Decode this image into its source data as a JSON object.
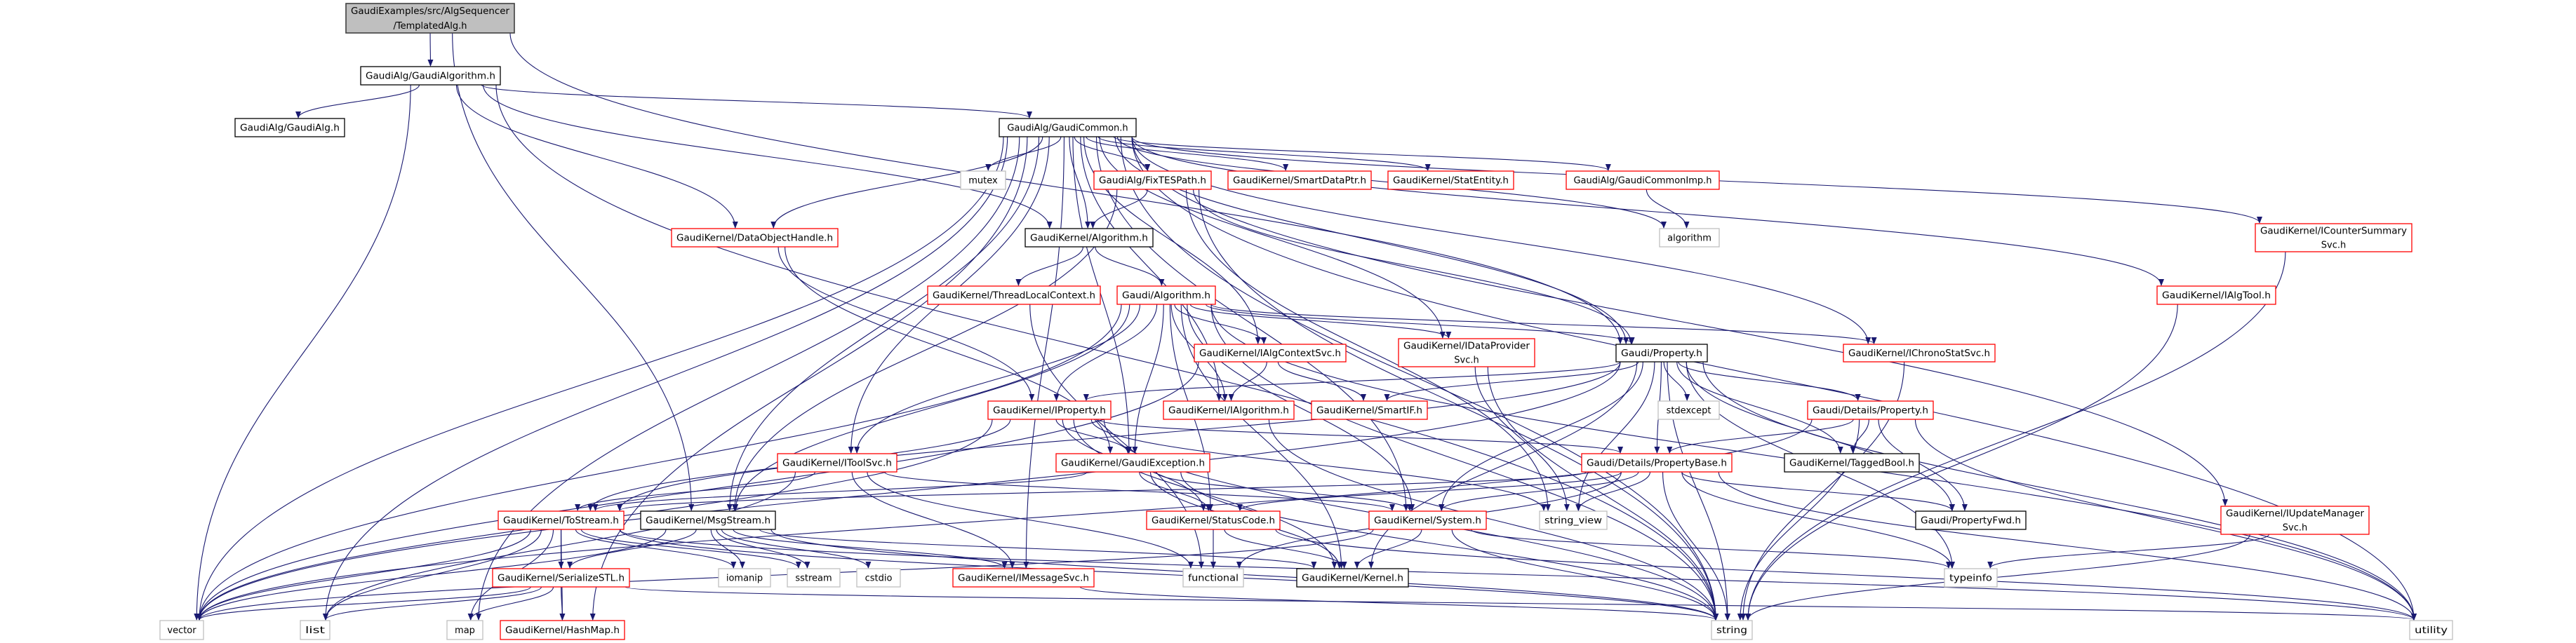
{
  "colors": {
    "edge": "#191970",
    "root_fill": "#bfbfbf",
    "root_border": "#404040",
    "incomplete_border": "#ff0000",
    "documented_border": "#000000",
    "system_border": "#bfbfbf"
  },
  "nodes": [
    {
      "id": "templated",
      "kind": "root",
      "lines": [
        "GaudiExamples/src/AlgSequencer",
        "/TemplatedAlg.h"
      ]
    },
    {
      "id": "gaudialgorithm",
      "kind": "documented",
      "lines": [
        "GaudiAlg/GaudiAlgorithm.h"
      ]
    },
    {
      "id": "gaudialg",
      "kind": "documented",
      "lines": [
        "GaudiAlg/GaudiAlg.h"
      ]
    },
    {
      "id": "gaudicommon",
      "kind": "documented",
      "lines": [
        "GaudiAlg/GaudiCommon.h"
      ]
    },
    {
      "id": "mutex",
      "kind": "system",
      "lines": [
        "mutex"
      ]
    },
    {
      "id": "fixtespath",
      "kind": "incomplete",
      "lines": [
        "GaudiAlg/FixTESPath.h"
      ]
    },
    {
      "id": "smartdataptr",
      "kind": "incomplete",
      "lines": [
        "GaudiKernel/SmartDataPtr.h"
      ]
    },
    {
      "id": "statentity",
      "kind": "incomplete",
      "lines": [
        "GaudiKernel/StatEntity.h"
      ]
    },
    {
      "id": "gaudicommonimp",
      "kind": "incomplete",
      "lines": [
        "GaudiAlg/GaudiCommonImp.h"
      ]
    },
    {
      "id": "algorithm_std",
      "kind": "system",
      "lines": [
        "algorithm"
      ]
    },
    {
      "id": "icountersummarysvc",
      "kind": "incomplete",
      "lines": [
        "GaudiKernel/ICounterSummary",
        "Svc.h"
      ]
    },
    {
      "id": "dataobjecthandle",
      "kind": "incomplete",
      "lines": [
        "GaudiKernel/DataObjectHandle.h"
      ]
    },
    {
      "id": "gk_algorithm",
      "kind": "documented",
      "lines": [
        "GaudiKernel/Algorithm.h"
      ]
    },
    {
      "id": "threadlocalcontext",
      "kind": "incomplete",
      "lines": [
        "GaudiKernel/ThreadLocalContext.h"
      ]
    },
    {
      "id": "gaudi_algorithm",
      "kind": "incomplete",
      "lines": [
        "Gaudi/Algorithm.h"
      ]
    },
    {
      "id": "ialgtool",
      "kind": "incomplete",
      "lines": [
        "GaudiKernel/IAlgTool.h"
      ]
    },
    {
      "id": "ialgcontextsvc",
      "kind": "incomplete",
      "lines": [
        "GaudiKernel/IAlgContextSvc.h"
      ]
    },
    {
      "id": "idataprovidersvc",
      "kind": "incomplete",
      "lines": [
        "GaudiKernel/IDataProvider",
        "Svc.h"
      ]
    },
    {
      "id": "property",
      "kind": "documented",
      "lines": [
        "Gaudi/Property.h"
      ]
    },
    {
      "id": "ichronostatsvc",
      "kind": "incomplete",
      "lines": [
        "GaudiKernel/IChronoStatSvc.h"
      ]
    },
    {
      "id": "iproperty",
      "kind": "incomplete",
      "lines": [
        "GaudiKernel/IProperty.h"
      ]
    },
    {
      "id": "ialgorithm",
      "kind": "incomplete",
      "lines": [
        "GaudiKernel/IAlgorithm.h"
      ]
    },
    {
      "id": "smartif",
      "kind": "incomplete",
      "lines": [
        "GaudiKernel/SmartIF.h"
      ]
    },
    {
      "id": "stdexcept",
      "kind": "system",
      "lines": [
        "stdexcept"
      ]
    },
    {
      "id": "details_property",
      "kind": "incomplete",
      "lines": [
        "Gaudi/Details/Property.h"
      ]
    },
    {
      "id": "itoolsvc",
      "kind": "incomplete",
      "lines": [
        "GaudiKernel/IToolSvc.h"
      ]
    },
    {
      "id": "gaudiexception",
      "kind": "incomplete",
      "lines": [
        "GaudiKernel/GaudiException.h"
      ]
    },
    {
      "id": "propertybase",
      "kind": "incomplete",
      "lines": [
        "Gaudi/Details/PropertyBase.h"
      ]
    },
    {
      "id": "taggedbool",
      "kind": "documented",
      "lines": [
        "GaudiKernel/TaggedBool.h"
      ]
    },
    {
      "id": "tostream",
      "kind": "incomplete",
      "lines": [
        "GaudiKernel/ToStream.h"
      ]
    },
    {
      "id": "msgstream",
      "kind": "documented",
      "lines": [
        "GaudiKernel/MsgStream.h"
      ]
    },
    {
      "id": "statuscode",
      "kind": "incomplete",
      "lines": [
        "GaudiKernel/StatusCode.h"
      ]
    },
    {
      "id": "system",
      "kind": "incomplete",
      "lines": [
        "GaudiKernel/System.h"
      ]
    },
    {
      "id": "string_view",
      "kind": "system",
      "lines": [
        "string_view"
      ]
    },
    {
      "id": "propertyfwd",
      "kind": "documented",
      "lines": [
        "Gaudi/PropertyFwd.h"
      ]
    },
    {
      "id": "iupdatemanagersvc",
      "kind": "incomplete",
      "lines": [
        "GaudiKernel/IUpdateManager",
        "Svc.h"
      ]
    },
    {
      "id": "serializestl",
      "kind": "incomplete",
      "lines": [
        "GaudiKernel/SerializeSTL.h"
      ]
    },
    {
      "id": "iomanip",
      "kind": "system",
      "lines": [
        "iomanip"
      ]
    },
    {
      "id": "sstream",
      "kind": "system",
      "lines": [
        "sstream"
      ]
    },
    {
      "id": "cstdio",
      "kind": "system",
      "lines": [
        "cstdio"
      ]
    },
    {
      "id": "imessagesvc",
      "kind": "incomplete",
      "lines": [
        "GaudiKernel/IMessageSvc.h"
      ]
    },
    {
      "id": "functional",
      "kind": "system",
      "lines": [
        "functional"
      ]
    },
    {
      "id": "kernel",
      "kind": "documented",
      "lines": [
        "GaudiKernel/Kernel.h"
      ]
    },
    {
      "id": "typeinfo",
      "kind": "system",
      "lines": [
        "typeinfo"
      ]
    },
    {
      "id": "vector",
      "kind": "system",
      "lines": [
        "vector"
      ]
    },
    {
      "id": "list",
      "kind": "system",
      "lines": [
        "list"
      ]
    },
    {
      "id": "map",
      "kind": "system",
      "lines": [
        "map"
      ]
    },
    {
      "id": "hashmap",
      "kind": "incomplete",
      "lines": [
        "GaudiKernel/HashMap.h"
      ]
    },
    {
      "id": "string",
      "kind": "system",
      "lines": [
        "string"
      ]
    },
    {
      "id": "utility",
      "kind": "system",
      "lines": [
        "utility"
      ]
    }
  ],
  "edges": [
    [
      "templated",
      "gaudialgorithm"
    ],
    [
      "templated",
      "property"
    ],
    [
      "templated",
      "msgstream"
    ],
    [
      "gaudialgorithm",
      "gaudialg"
    ],
    [
      "gaudialgorithm",
      "gaudicommon"
    ],
    [
      "gaudialgorithm",
      "dataobjecthandle"
    ],
    [
      "gaudialgorithm",
      "gk_algorithm"
    ],
    [
      "gaudialgorithm",
      "vector"
    ],
    [
      "gaudialgorithm",
      "string"
    ],
    [
      "gaudicommon",
      "mutex"
    ],
    [
      "gaudicommon",
      "fixtespath"
    ],
    [
      "gaudicommon",
      "smartdataptr"
    ],
    [
      "gaudicommon",
      "statentity"
    ],
    [
      "gaudicommon",
      "gaudicommonimp"
    ],
    [
      "gaudicommon",
      "algorithm_std"
    ],
    [
      "gaudicommon",
      "icountersummarysvc"
    ],
    [
      "gaudicommon",
      "dataobjecthandle"
    ],
    [
      "gaudicommon",
      "gk_algorithm"
    ],
    [
      "gaudicommon",
      "ialgtool"
    ],
    [
      "gaudicommon",
      "ialgcontextsvc"
    ],
    [
      "gaudicommon",
      "idataprovidersvc"
    ],
    [
      "gaudicommon",
      "ichronostatsvc"
    ],
    [
      "gaudicommon",
      "ialgorithm"
    ],
    [
      "gaudicommon",
      "itoolsvc"
    ],
    [
      "gaudicommon",
      "gaudiexception"
    ],
    [
      "gaudicommon",
      "msgstream"
    ],
    [
      "gaudicommon",
      "system"
    ],
    [
      "gaudicommon",
      "iupdatemanagersvc"
    ],
    [
      "gaudicommon",
      "imessagesvc"
    ],
    [
      "gaudicommon",
      "vector"
    ],
    [
      "gaudicommon",
      "list"
    ],
    [
      "gaudicommon",
      "map"
    ],
    [
      "gaudicommon",
      "hashmap"
    ],
    [
      "gaudicommon",
      "string"
    ],
    [
      "gaudicommon",
      "utility"
    ],
    [
      "gaudicommon",
      "property"
    ],
    [
      "fixtespath",
      "gk_algorithm"
    ],
    [
      "fixtespath",
      "property"
    ],
    [
      "fixtespath",
      "msgstream"
    ],
    [
      "fixtespath",
      "string_view"
    ],
    [
      "fixtespath",
      "string"
    ],
    [
      "gaudicommonimp",
      "algorithm_std"
    ],
    [
      "gk_algorithm",
      "threadlocalcontext"
    ],
    [
      "gk_algorithm",
      "gaudi_algorithm"
    ],
    [
      "threadlocalcontext",
      "functional"
    ],
    [
      "gaudi_algorithm",
      "ialgcontextsvc"
    ],
    [
      "gaudi_algorithm",
      "idataprovidersvc"
    ],
    [
      "gaudi_algorithm",
      "property"
    ],
    [
      "gaudi_algorithm",
      "ichronostatsvc"
    ],
    [
      "gaudi_algorithm",
      "iproperty"
    ],
    [
      "gaudi_algorithm",
      "ialgorithm"
    ],
    [
      "gaudi_algorithm",
      "itoolsvc"
    ],
    [
      "gaudi_algorithm",
      "gaudiexception"
    ],
    [
      "gaudi_algorithm",
      "statuscode"
    ],
    [
      "gaudi_algorithm",
      "system"
    ],
    [
      "gaudi_algorithm",
      "msgstream"
    ],
    [
      "gaudi_algorithm",
      "kernel"
    ],
    [
      "gaudi_algorithm",
      "vector"
    ],
    [
      "gaudi_algorithm",
      "string"
    ],
    [
      "gaudi_algorithm",
      "utility"
    ],
    [
      "dataobjecthandle",
      "iproperty"
    ],
    [
      "dataobjecthandle",
      "gaudiexception"
    ],
    [
      "ialgcontextsvc",
      "ialgorithm"
    ],
    [
      "ialgcontextsvc",
      "smartif"
    ],
    [
      "ialgcontextsvc",
      "vector"
    ],
    [
      "idataprovidersvc",
      "string_view"
    ],
    [
      "idataprovidersvc",
      "string"
    ],
    [
      "property",
      "iproperty"
    ],
    [
      "property",
      "smartif"
    ],
    [
      "property",
      "stdexcept"
    ],
    [
      "property",
      "details_property"
    ],
    [
      "property",
      "propertybase"
    ],
    [
      "property",
      "taggedbool"
    ],
    [
      "property",
      "propertyfwd"
    ],
    [
      "property",
      "string_view"
    ],
    [
      "property",
      "string"
    ],
    [
      "property",
      "typeinfo"
    ],
    [
      "property",
      "utility"
    ],
    [
      "property",
      "system"
    ],
    [
      "property",
      "kernel"
    ],
    [
      "property",
      "tostream"
    ],
    [
      "property",
      "vector"
    ],
    [
      "ichronostatsvc",
      "string"
    ],
    [
      "ialgtool",
      "string"
    ],
    [
      "icountersummarysvc",
      "string"
    ],
    [
      "iupdatemanagersvc",
      "typeinfo"
    ],
    [
      "iupdatemanagersvc",
      "string"
    ],
    [
      "iproperty",
      "gaudiexception"
    ],
    [
      "iproperty",
      "tostream"
    ],
    [
      "iproperty",
      "statuscode"
    ],
    [
      "iproperty",
      "string"
    ],
    [
      "iproperty",
      "vector"
    ],
    [
      "iproperty",
      "string_view"
    ],
    [
      "iproperty",
      "kernel"
    ],
    [
      "iproperty",
      "propertybase"
    ],
    [
      "ialgorithm",
      "string"
    ],
    [
      "details_property",
      "propertybase"
    ],
    [
      "details_property",
      "taggedbool"
    ],
    [
      "details_property",
      "propertyfwd"
    ],
    [
      "details_property",
      "string"
    ],
    [
      "details_property",
      "utility"
    ],
    [
      "details_property",
      "vector"
    ],
    [
      "propertybase",
      "statuscode"
    ],
    [
      "propertybase",
      "system"
    ],
    [
      "propertybase",
      "string_view"
    ],
    [
      "propertybase",
      "propertyfwd"
    ],
    [
      "propertybase",
      "typeinfo"
    ],
    [
      "propertybase",
      "string"
    ],
    [
      "propertybase",
      "utility"
    ],
    [
      "propertybase",
      "functional"
    ],
    [
      "propertybase",
      "tostream"
    ],
    [
      "itoolsvc",
      "tostream"
    ],
    [
      "itoolsvc",
      "system"
    ],
    [
      "itoolsvc",
      "list"
    ],
    [
      "itoolsvc",
      "functional"
    ],
    [
      "itoolsvc",
      "imessagesvc"
    ],
    [
      "gaudiexception",
      "statuscode"
    ],
    [
      "gaudiexception",
      "kernel"
    ],
    [
      "gaudiexception",
      "string"
    ],
    [
      "gaudiexception",
      "tostream"
    ],
    [
      "gaudiexception",
      "system"
    ],
    [
      "statuscode",
      "functional"
    ],
    [
      "statuscode",
      "kernel"
    ],
    [
      "statuscode",
      "utility"
    ],
    [
      "system",
      "kernel"
    ],
    [
      "system",
      "string"
    ],
    [
      "system",
      "typeinfo"
    ],
    [
      "system",
      "vector"
    ],
    [
      "tostream",
      "serializestl"
    ],
    [
      "tostream",
      "iomanip"
    ],
    [
      "tostream",
      "sstream"
    ],
    [
      "tostream",
      "vector"
    ],
    [
      "tostream",
      "list"
    ],
    [
      "tostream",
      "map"
    ],
    [
      "tostream",
      "hashmap"
    ],
    [
      "tostream",
      "string"
    ],
    [
      "tostream",
      "utility"
    ],
    [
      "msgstream",
      "serializestl"
    ],
    [
      "msgstream",
      "iomanip"
    ],
    [
      "msgstream",
      "sstream"
    ],
    [
      "msgstream",
      "cstdio"
    ],
    [
      "msgstream",
      "imessagesvc"
    ],
    [
      "msgstream",
      "string"
    ],
    [
      "msgstream",
      "vector"
    ],
    [
      "msgstream",
      "kernel"
    ],
    [
      "serializestl",
      "vector"
    ],
    [
      "serializestl",
      "list"
    ],
    [
      "serializestl",
      "map"
    ],
    [
      "serializestl",
      "hashmap"
    ],
    [
      "serializestl",
      "utility"
    ],
    [
      "imessagesvc",
      "string"
    ]
  ]
}
